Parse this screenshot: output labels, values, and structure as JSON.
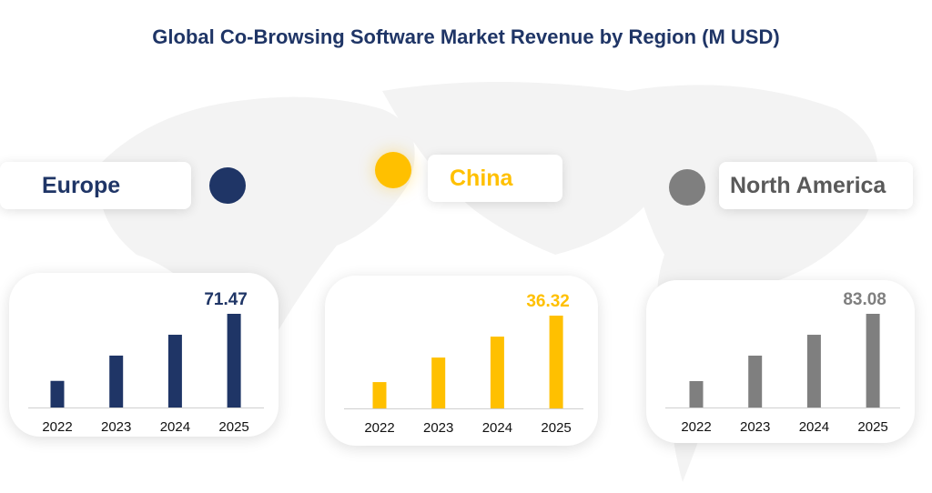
{
  "chart_data": [
    {
      "type": "bar",
      "title": "Global Co-Browsing Software Market Revenue by Region (M USD)",
      "region": "Europe",
      "color": "#1f3566",
      "categories": [
        "2022",
        "2023",
        "2024",
        "2025"
      ],
      "values": [
        20.3,
        39.6,
        55.5,
        71.47
      ],
      "data_label": "71.47"
    },
    {
      "type": "bar",
      "region": "China",
      "color": "#ffc000",
      "categories": [
        "2022",
        "2023",
        "2024",
        "2025"
      ],
      "values": [
        10.3,
        19.9,
        28.1,
        36.32
      ],
      "data_label": "36.32"
    },
    {
      "type": "bar",
      "region": "North America",
      "color": "#7f7f7f",
      "categories": [
        "2022",
        "2023",
        "2024",
        "2025"
      ],
      "values": [
        23.4,
        46.0,
        64.5,
        83.08
      ],
      "data_label": "83.08"
    }
  ]
}
